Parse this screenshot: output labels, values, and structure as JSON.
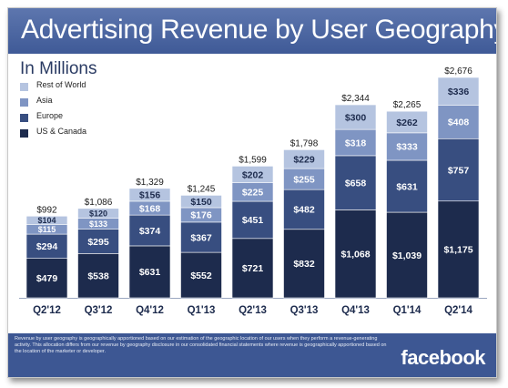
{
  "slide": {
    "title": "Advertising Revenue by User Geography",
    "subtitle": "In Millions",
    "footnote": "Revenue by user geography is geographically apportioned based on our estimation of the geographic location of our users when they perform a revenue-generating activity. This allocation differs from our revenue by geography disclosure in our consolidated financial statements where revenue is geographically apportioned based on the location of the marketer or developer.",
    "brand": "facebook"
  },
  "colors": {
    "title_bar": "#4a64a0",
    "footer": "#3d5793",
    "us_canada": "#1d2b4d",
    "europe": "#384e80",
    "asia": "#7f95c3",
    "rest_of_world": "#b5c4e0"
  },
  "chart_data": {
    "type": "bar",
    "stacked": true,
    "categories": [
      "Q2'12",
      "Q3'12",
      "Q4'12",
      "Q1'13",
      "Q2'13",
      "Q3'13",
      "Q4'13",
      "Q1'14",
      "Q2'14"
    ],
    "series": [
      {
        "name": "US & Canada",
        "color": "#1d2b4d",
        "values": [
          479,
          538,
          631,
          552,
          721,
          832,
          1068,
          1039,
          1175
        ]
      },
      {
        "name": "Europe",
        "color": "#384e80",
        "values": [
          294,
          295,
          374,
          367,
          451,
          482,
          658,
          631,
          757
        ]
      },
      {
        "name": "Asia",
        "color": "#7f95c3",
        "values": [
          115,
          133,
          168,
          176,
          225,
          255,
          318,
          333,
          408
        ]
      },
      {
        "name": "Rest of World",
        "color": "#b5c4e0",
        "values": [
          104,
          120,
          156,
          150,
          202,
          229,
          300,
          262,
          336
        ]
      }
    ],
    "value_labels": [
      [
        "$479",
        "$538",
        "$631",
        "$552",
        "$721",
        "$832",
        "$1,068",
        "$1,039",
        "$1,175"
      ],
      [
        "$294",
        "$295",
        "$374",
        "$367",
        "$451",
        "$482",
        "$658",
        "$631",
        "$757"
      ],
      [
        "$115",
        "$133",
        "$168",
        "$176",
        "$225",
        "$255",
        "$318",
        "$333",
        "$408"
      ],
      [
        "$104",
        "$120",
        "$156",
        "$150",
        "$202",
        "$229",
        "$300",
        "$262",
        "$336"
      ]
    ],
    "totals": [
      992,
      1086,
      1329,
      1245,
      1599,
      1798,
      2344,
      2265,
      2676
    ],
    "total_labels": [
      "$992",
      "$1,086",
      "$1,329",
      "$1,245",
      "$1,599",
      "$1,798",
      "$2,344",
      "$2,265",
      "$2,676"
    ],
    "legend_order": [
      "Rest of World",
      "Asia",
      "Europe",
      "US & Canada"
    ],
    "legend_position": "top-left",
    "ylim": [
      0,
      2676
    ],
    "grid": false
  }
}
